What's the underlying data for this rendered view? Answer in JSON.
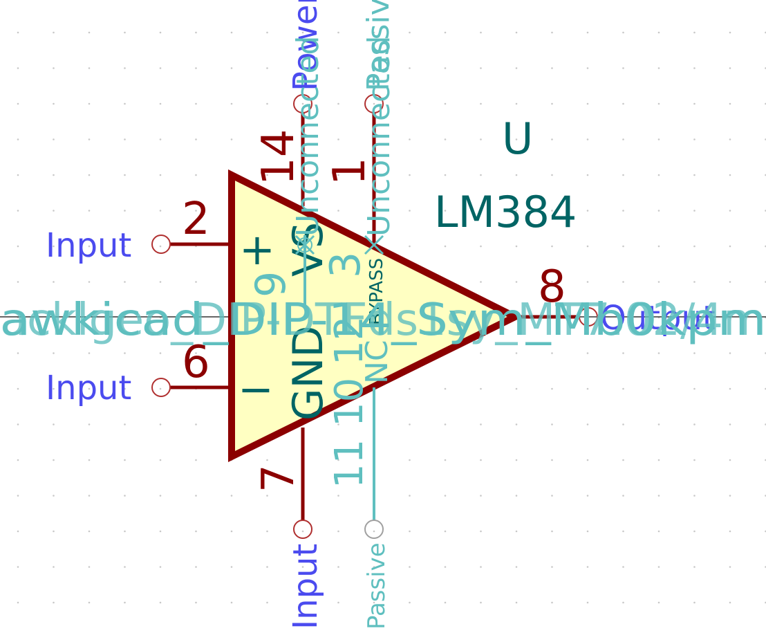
{
  "schematic": {
    "reference": "U",
    "value": "LM384",
    "footprint_overlay_text": "awkicad_DIP-14_Sym_Mb0kpm",
    "overlay_text_2": "acklgeo_DIP-DTFds1sy_MT7.02/4m",
    "symbol_marks": {
      "plus": "+",
      "minus": "−"
    },
    "pins": {
      "p2": {
        "number": "2",
        "type": "Input"
      },
      "p6": {
        "number": "6",
        "type": "Input"
      },
      "p14": {
        "number": "14",
        "name": "VS",
        "type": "Power"
      },
      "p1": {
        "number": "1",
        "name": "BYPASS",
        "type": "Passive"
      },
      "p7": {
        "number": "7",
        "name": "GND",
        "type": "Input"
      },
      "p8": {
        "number": "8",
        "type": "Output"
      },
      "nc_top": {
        "number": "3",
        "name": "NC",
        "extra": "9"
      },
      "nc_bottom": {
        "numbers": "11 10 12",
        "name": "NC",
        "type": "Passive"
      }
    },
    "unconnected_label": "Unconnected",
    "colors": {
      "body_fill": "#ffffc2",
      "body_stroke": "#8b0000",
      "pin": "#8b0000",
      "pin_number": "#8b0000",
      "pin_type": "#4b4bef",
      "designator": "#006464",
      "hidden_pin": "#5fbfbf",
      "grid_dot": "#c8c8c8"
    }
  }
}
